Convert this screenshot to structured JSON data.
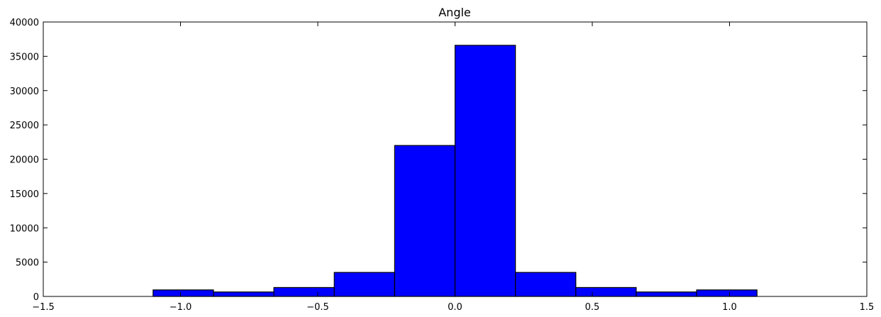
{
  "chart_data": {
    "type": "bar",
    "title": "Angle",
    "xlabel": "",
    "ylabel": "",
    "xlim": [
      -1.5,
      1.5
    ],
    "ylim": [
      0,
      40000
    ],
    "x_ticks": [
      -1.5,
      -1.0,
      -0.5,
      0.0,
      0.5,
      1.0,
      1.5
    ],
    "x_tick_labels": [
      "−1.5",
      "−1.0",
      "−0.5",
      "0.0",
      "0.5",
      "1.0",
      "1.5"
    ],
    "y_ticks": [
      0,
      5000,
      10000,
      15000,
      20000,
      25000,
      30000,
      35000,
      40000
    ],
    "y_tick_labels": [
      "0",
      "5000",
      "10000",
      "15000",
      "20000",
      "25000",
      "30000",
      "35000",
      "40000"
    ],
    "bin_edges": [
      -1.1,
      -0.88,
      -0.66,
      -0.44,
      -0.22,
      0.0,
      0.22,
      0.44,
      0.66,
      0.88,
      1.1
    ],
    "values": [
      950,
      650,
      1300,
      3500,
      22000,
      36600,
      3500,
      1300,
      650,
      950
    ],
    "bar_color": "#0000ff",
    "edge_color": "#000000",
    "grid": false
  }
}
